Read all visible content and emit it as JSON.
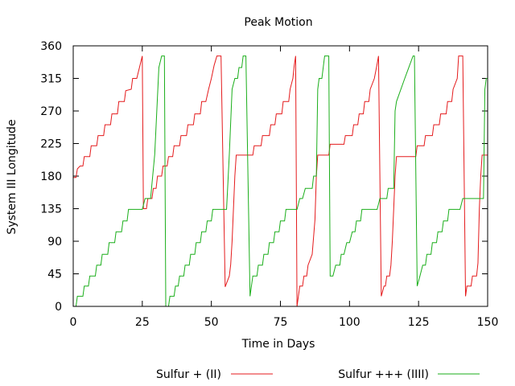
{
  "chart_data": {
    "type": "line",
    "title": "Peak Motion",
    "xlabel": "Time in Days",
    "ylabel": "System III Longitude",
    "xlim": [
      0,
      150
    ],
    "ylim": [
      0,
      360
    ],
    "xticks": [
      0,
      25,
      50,
      75,
      100,
      125,
      150
    ],
    "yticks": [
      0,
      45,
      90,
      135,
      180,
      225,
      270,
      315,
      360
    ],
    "grid": false,
    "legend_position": "bottom",
    "series": [
      {
        "name": "Sulfur + (II)",
        "color": "#e41a1c",
        "points": [
          [
            0,
            178
          ],
          [
            1,
            178
          ],
          [
            1.5,
            190
          ],
          [
            2.5,
            194
          ],
          [
            3.5,
            194
          ],
          [
            4,
            207
          ],
          [
            6,
            207
          ],
          [
            6.5,
            222
          ],
          [
            8.5,
            222
          ],
          [
            9,
            236
          ],
          [
            11,
            236
          ],
          [
            11.5,
            251
          ],
          [
            13.5,
            251
          ],
          [
            14,
            266
          ],
          [
            16,
            266
          ],
          [
            16.5,
            283
          ],
          [
            18.5,
            283
          ],
          [
            19,
            298
          ],
          [
            21,
            300
          ],
          [
            21.5,
            315
          ],
          [
            23,
            315
          ],
          [
            25,
            346
          ],
          [
            25.4,
            135
          ],
          [
            26.5,
            135
          ],
          [
            27,
            149
          ],
          [
            28.5,
            149
          ],
          [
            29,
            163
          ],
          [
            30,
            163
          ],
          [
            30.5,
            180
          ],
          [
            32,
            180
          ],
          [
            32.5,
            194
          ],
          [
            34,
            194
          ],
          [
            34.5,
            207
          ],
          [
            36,
            207
          ],
          [
            36.5,
            222
          ],
          [
            38.5,
            222
          ],
          [
            39,
            236
          ],
          [
            41,
            236
          ],
          [
            41.5,
            251
          ],
          [
            43.5,
            251
          ],
          [
            44,
            266
          ],
          [
            46,
            266
          ],
          [
            46.5,
            283
          ],
          [
            48,
            283
          ],
          [
            49,
            300
          ],
          [
            50,
            315
          ],
          [
            51,
            333
          ],
          [
            52,
            346
          ],
          [
            53.5,
            346
          ],
          [
            55,
            27
          ],
          [
            56.5,
            42
          ],
          [
            57,
            58
          ],
          [
            57.5,
            90
          ],
          [
            58,
            135
          ],
          [
            58.5,
            180
          ],
          [
            59,
            209
          ],
          [
            64,
            209
          ],
          [
            65,
            209
          ],
          [
            65.5,
            222
          ],
          [
            68,
            222
          ],
          [
            68.5,
            236
          ],
          [
            71,
            236
          ],
          [
            71.5,
            251
          ],
          [
            73,
            251
          ],
          [
            73.5,
            266
          ],
          [
            75.5,
            266
          ],
          [
            76,
            283
          ],
          [
            78,
            283
          ],
          [
            78.5,
            300
          ],
          [
            79.5,
            315
          ],
          [
            80,
            333
          ],
          [
            80.5,
            346
          ],
          [
            81,
            0
          ],
          [
            81.5,
            14
          ],
          [
            82,
            28
          ],
          [
            83,
            28
          ],
          [
            83.5,
            42
          ],
          [
            84.5,
            42
          ],
          [
            85,
            57
          ],
          [
            86.5,
            72
          ],
          [
            87.5,
            120
          ],
          [
            88,
            180
          ],
          [
            88.5,
            209
          ],
          [
            92.5,
            209
          ],
          [
            93,
            224
          ],
          [
            98,
            224
          ],
          [
            98.5,
            236
          ],
          [
            101,
            236
          ],
          [
            101.5,
            251
          ],
          [
            103,
            251
          ],
          [
            103.5,
            266
          ],
          [
            105,
            266
          ],
          [
            105.5,
            283
          ],
          [
            107,
            283
          ],
          [
            107.5,
            300
          ],
          [
            109,
            315
          ],
          [
            110,
            335
          ],
          [
            110.5,
            346
          ],
          [
            111.5,
            14
          ],
          [
            112.5,
            28
          ],
          [
            113,
            28
          ],
          [
            113.5,
            42
          ],
          [
            114.5,
            42
          ],
          [
            115,
            57
          ],
          [
            115.5,
            90
          ],
          [
            116,
            135
          ],
          [
            116.5,
            180
          ],
          [
            117,
            207
          ],
          [
            124,
            207
          ],
          [
            124.5,
            222
          ],
          [
            127,
            222
          ],
          [
            127.5,
            236
          ],
          [
            130,
            236
          ],
          [
            130.5,
            251
          ],
          [
            132.5,
            251
          ],
          [
            133,
            266
          ],
          [
            135,
            266
          ],
          [
            135.5,
            283
          ],
          [
            137,
            283
          ],
          [
            137.5,
            300
          ],
          [
            139,
            315
          ],
          [
            139.5,
            346
          ],
          [
            141,
            346
          ],
          [
            142,
            14
          ],
          [
            142.5,
            28
          ],
          [
            144,
            28
          ],
          [
            144.5,
            42
          ],
          [
            146,
            42
          ],
          [
            146.5,
            60
          ],
          [
            147,
            135
          ],
          [
            147.5,
            180
          ],
          [
            148,
            209
          ],
          [
            150,
            209
          ]
        ]
      },
      {
        "name": "Sulfur +++ (IIII)",
        "color": "#1aae1a",
        "points": [
          [
            0,
            0
          ],
          [
            1,
            0
          ],
          [
            1.5,
            14
          ],
          [
            3.5,
            14
          ],
          [
            4,
            28
          ],
          [
            5.5,
            28
          ],
          [
            6,
            42
          ],
          [
            8,
            42
          ],
          [
            8.5,
            57
          ],
          [
            10,
            57
          ],
          [
            10.5,
            72
          ],
          [
            12.5,
            72
          ],
          [
            13,
            88
          ],
          [
            15,
            88
          ],
          [
            15.5,
            103
          ],
          [
            17.5,
            103
          ],
          [
            18,
            118
          ],
          [
            19.5,
            118
          ],
          [
            20,
            134
          ],
          [
            24.5,
            134
          ],
          [
            25,
            134
          ],
          [
            26,
            149
          ],
          [
            28,
            149
          ],
          [
            29.5,
            210
          ],
          [
            31,
            330
          ],
          [
            32,
            346
          ],
          [
            33,
            346
          ],
          [
            33.5,
            0
          ],
          [
            34.5,
            0
          ],
          [
            35,
            14
          ],
          [
            36.5,
            14
          ],
          [
            37,
            28
          ],
          [
            38,
            28
          ],
          [
            38.5,
            42
          ],
          [
            40,
            42
          ],
          [
            40.5,
            57
          ],
          [
            42,
            57
          ],
          [
            42.5,
            72
          ],
          [
            44,
            72
          ],
          [
            44.5,
            88
          ],
          [
            46,
            88
          ],
          [
            46.5,
            103
          ],
          [
            48,
            103
          ],
          [
            48.5,
            118
          ],
          [
            50,
            118
          ],
          [
            50.5,
            134
          ],
          [
            55.5,
            134
          ],
          [
            56.5,
            210
          ],
          [
            57.5,
            300
          ],
          [
            58.5,
            315
          ],
          [
            59.5,
            315
          ],
          [
            60,
            330
          ],
          [
            61,
            330
          ],
          [
            61.5,
            346
          ],
          [
            62.5,
            346
          ],
          [
            64,
            14
          ],
          [
            65,
            42
          ],
          [
            66.5,
            42
          ],
          [
            67,
            57
          ],
          [
            68.5,
            57
          ],
          [
            69,
            72
          ],
          [
            70.5,
            72
          ],
          [
            71,
            88
          ],
          [
            72.5,
            88
          ],
          [
            73,
            103
          ],
          [
            74.5,
            103
          ],
          [
            75,
            118
          ],
          [
            76.5,
            118
          ],
          [
            77,
            134
          ],
          [
            81,
            134
          ],
          [
            82,
            149
          ],
          [
            83,
            149
          ],
          [
            84,
            163
          ],
          [
            86.5,
            163
          ],
          [
            87,
            180
          ],
          [
            88,
            180
          ],
          [
            88.5,
            300
          ],
          [
            89,
            315
          ],
          [
            90,
            315
          ],
          [
            91,
            346
          ],
          [
            92.5,
            346
          ],
          [
            93,
            42
          ],
          [
            94,
            42
          ],
          [
            95,
            57
          ],
          [
            96.5,
            57
          ],
          [
            97,
            72
          ],
          [
            98,
            72
          ],
          [
            99,
            88
          ],
          [
            100,
            88
          ],
          [
            101,
            103
          ],
          [
            102,
            103
          ],
          [
            102.5,
            118
          ],
          [
            104,
            118
          ],
          [
            104.5,
            134
          ],
          [
            110,
            134
          ],
          [
            111,
            149
          ],
          [
            113.5,
            149
          ],
          [
            114,
            163
          ],
          [
            116,
            163
          ],
          [
            116.5,
            270
          ],
          [
            117,
            283
          ],
          [
            120,
            315
          ],
          [
            123,
            346
          ],
          [
            123.5,
            346
          ],
          [
            124.5,
            28
          ],
          [
            125.5,
            42
          ],
          [
            126.5,
            57
          ],
          [
            127.5,
            57
          ],
          [
            128,
            72
          ],
          [
            129.5,
            72
          ],
          [
            130,
            88
          ],
          [
            131.5,
            88
          ],
          [
            132,
            103
          ],
          [
            133.5,
            103
          ],
          [
            134,
            118
          ],
          [
            135.5,
            118
          ],
          [
            136,
            134
          ],
          [
            140,
            134
          ],
          [
            141,
            149
          ],
          [
            148.5,
            149
          ],
          [
            149,
            300
          ],
          [
            149.5,
            315
          ],
          [
            150,
            315
          ]
        ]
      }
    ]
  }
}
